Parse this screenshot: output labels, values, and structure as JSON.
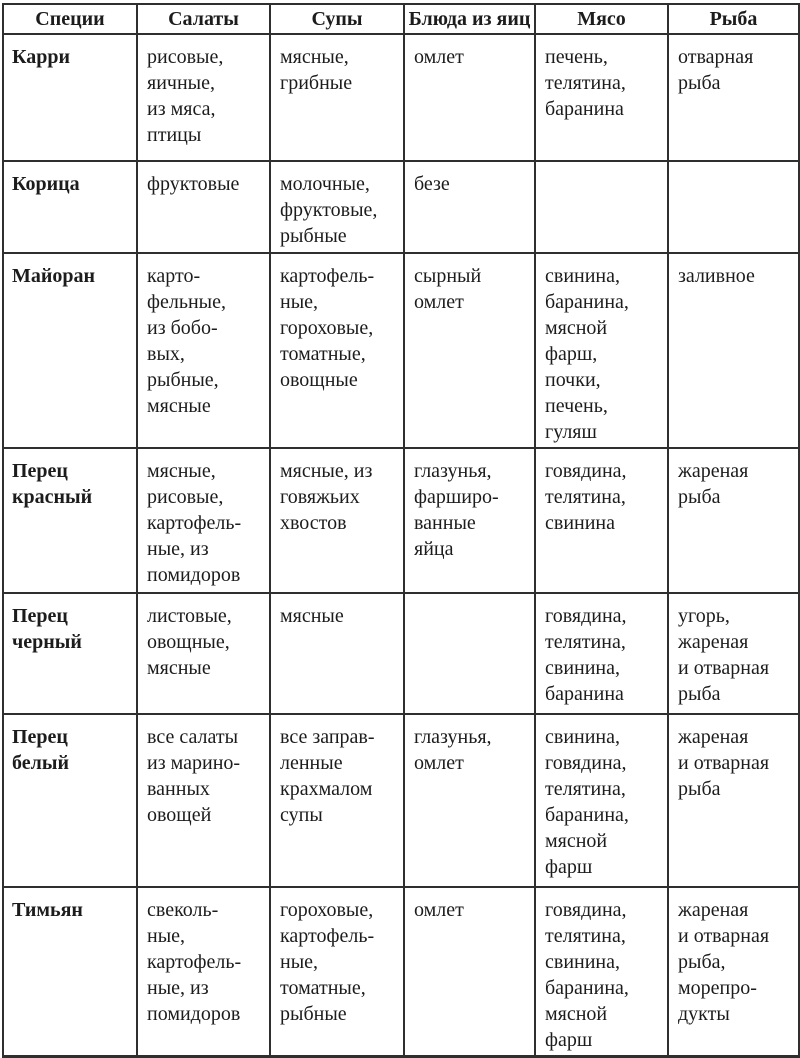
{
  "table": {
    "headers": [
      "Специи",
      "Салаты",
      "Супы",
      "Блюда из яиц",
      "Мясо",
      "Рыба"
    ],
    "rows": [
      {
        "spice": "Карри",
        "cells": [
          "рисовые,\nяичные,\nиз мяса,\nптицы",
          "мясные,\nгрибные",
          "омлет",
          "печень,\nтелятина,\nбаранина",
          "отварная\nрыба"
        ]
      },
      {
        "spice": "Корица",
        "cells": [
          "фруктовые",
          "молочные,\nфруктовые,\nрыбные",
          "безе",
          "",
          ""
        ]
      },
      {
        "spice": "Майоран",
        "cells": [
          "карто-\nфельные,\nиз бобо-\nвых,\nрыбные,\nмясные",
          "картофель-\nные,\nгороховые,\nтоматные,\nовощные",
          "сырный\nомлет",
          "свинина,\nбаранина,\nмясной\nфарш,\nпочки,\nпечень,\nгуляш",
          "заливное"
        ]
      },
      {
        "spice": "Перец\nкрасный",
        "cells": [
          "мясные,\nрисовые,\nкартофель-\nные, из\nпомидоров",
          "мясные, из\nговяжьих\nхвостов",
          "глазунья,\nфарширо-\nванные\nяйца",
          "говядина,\nтелятина,\nсвинина",
          "жареная\nрыба"
        ]
      },
      {
        "spice": "Перец\nчерный",
        "cells": [
          "листовые,\nовощные,\nмясные",
          "мясные",
          "",
          "говядина,\nтелятина,\nсвинина,\nбаранина",
          "угорь,\nжареная\nи отварная\nрыба"
        ]
      },
      {
        "spice": "Перец\nбелый",
        "cells": [
          "все салаты\nиз марино-\nванных\nовощей",
          "все заправ-\nленные\nкрахмалом\nсупы",
          "глазунья,\nомлет",
          "свинина,\nговядина,\nтелятина,\nбаранина,\nмясной\nфарш",
          "жареная\nи отварная\nрыба"
        ]
      },
      {
        "spice": "Тимьян",
        "cells": [
          "свеколь-\nные,\nкартофель-\nные, из\nпомидоров",
          "гороховые,\nкартофель-\nные,\nтоматные,\nрыбные",
          "омлет",
          "говядина,\nтелятина,\nсвинина,\nбаранина,\nмясной\nфарш",
          "жареная\nи отварная\nрыба,\nморепро-\nдукты"
        ]
      }
    ],
    "colors": {
      "text": "#1c1c1c",
      "border": "#2f2f2f",
      "background": "#ffffff"
    }
  }
}
